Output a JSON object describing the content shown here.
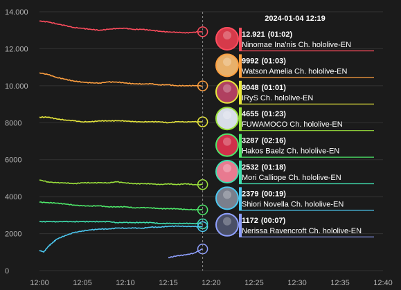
{
  "chart_data": {
    "type": "line",
    "x_axis": {
      "ticks": [
        "12:00",
        "12:05",
        "12:10",
        "12:15",
        "12:20",
        "12:25",
        "12:30",
        "12:35",
        "12:40"
      ],
      "min_minutes": 0,
      "max_minutes": 40
    },
    "y_axis": {
      "ticks": [
        "0",
        "2000",
        "4000",
        "6000",
        "8000",
        "10.000",
        "12.000",
        "14.000"
      ],
      "tick_values": [
        0,
        2000,
        4000,
        6000,
        8000,
        10000,
        12000,
        14000
      ],
      "min": 0,
      "max": 14000
    },
    "grid": "horizontal",
    "cursor_minutes": 19,
    "tooltip": {
      "time": "2024-01-04 12:19",
      "entries": [
        {
          "value": "12.921",
          "duration": "(01:02)",
          "name": "Ninomae Ina'nis Ch. hololive-EN",
          "color": "#ff4d5e",
          "avatar_color": "#d63a4a"
        },
        {
          "value": "9992",
          "duration": "(01:03)",
          "name": "Watson Amelia Ch. hololive-EN",
          "color": "#ffa040",
          "avatar_color": "#e8b06a"
        },
        {
          "value": "8048",
          "duration": "(01:01)",
          "name": "IRyS Ch. hololive-EN",
          "color": "#e6e63c",
          "avatar_color": "#b04060"
        },
        {
          "value": "4655",
          "duration": "(01:23)",
          "name": "FUWAMOCO Ch. hololive-EN",
          "color": "#9be23c",
          "avatar_color": "#d8dde8"
        },
        {
          "value": "3287",
          "duration": "(02:16)",
          "name": "Hakos Baelz Ch. hololive-EN",
          "color": "#4ee86a",
          "avatar_color": "#d0304a"
        },
        {
          "value": "2532",
          "duration": "(01:18)",
          "name": "Mori Calliope Ch. hololive-EN",
          "color": "#40e0b0",
          "avatar_color": "#e87a90"
        },
        {
          "value": "2379",
          "duration": "(00:19)",
          "name": "Shiori Novella Ch. hololive-EN",
          "color": "#4cc8f0",
          "avatar_color": "#7a7f8c"
        },
        {
          "value": "1172",
          "duration": "(00:07)",
          "name": "Nerissa Ravencroft Ch. hololive-EN",
          "color": "#8fa0ff",
          "avatar_color": "#4a4f66"
        }
      ]
    },
    "series": [
      {
        "color": "#ff4d5e",
        "x": [
          0,
          1,
          2,
          3,
          4,
          5,
          6,
          7,
          8,
          9,
          10,
          11,
          12,
          13,
          14,
          15,
          16,
          17,
          18,
          19
        ],
        "y": [
          13500,
          13450,
          13350,
          13250,
          13150,
          13100,
          13050,
          13000,
          13050,
          13100,
          13100,
          13050,
          13050,
          13000,
          12950,
          12900,
          12900,
          12850,
          12900,
          12921
        ]
      },
      {
        "color": "#ffa040",
        "x": [
          0,
          1,
          2,
          3,
          4,
          5,
          6,
          7,
          8,
          9,
          10,
          11,
          12,
          13,
          14,
          15,
          16,
          17,
          18,
          19
        ],
        "y": [
          10700,
          10600,
          10450,
          10350,
          10250,
          10200,
          10150,
          10150,
          10200,
          10200,
          10150,
          10100,
          10100,
          10100,
          10050,
          10050,
          10000,
          10000,
          10000,
          9992
        ]
      },
      {
        "color": "#e6e63c",
        "x": [
          0,
          1,
          2,
          3,
          4,
          5,
          6,
          7,
          8,
          9,
          10,
          11,
          12,
          13,
          14,
          15,
          16,
          17,
          18,
          19
        ],
        "y": [
          8300,
          8300,
          8200,
          8150,
          8100,
          8050,
          8050,
          8100,
          8100,
          8100,
          8100,
          8050,
          8050,
          8050,
          8050,
          8000,
          8050,
          8050,
          8050,
          8048
        ]
      },
      {
        "color": "#9be23c",
        "x": [
          0,
          1,
          2,
          3,
          4,
          5,
          6,
          7,
          8,
          9,
          10,
          11,
          12,
          13,
          14,
          15,
          16,
          17,
          18,
          19
        ],
        "y": [
          4900,
          4800,
          4750,
          4750,
          4700,
          4750,
          4750,
          4750,
          4750,
          4800,
          4750,
          4700,
          4700,
          4700,
          4650,
          4700,
          4650,
          4700,
          4650,
          4655
        ]
      },
      {
        "color": "#4ee86a",
        "x": [
          0,
          1,
          2,
          3,
          4,
          5,
          6,
          7,
          8,
          9,
          10,
          11,
          12,
          13,
          14,
          15,
          16,
          17,
          18,
          19
        ],
        "y": [
          3700,
          3680,
          3650,
          3600,
          3550,
          3500,
          3500,
          3500,
          3450,
          3450,
          3450,
          3400,
          3400,
          3400,
          3350,
          3350,
          3350,
          3300,
          3300,
          3287
        ]
      },
      {
        "color": "#40e0b0",
        "x": [
          0,
          1,
          2,
          3,
          4,
          5,
          6,
          7,
          8,
          9,
          10,
          11,
          12,
          13,
          14,
          15,
          16,
          17,
          18,
          19
        ],
        "y": [
          2650,
          2650,
          2650,
          2650,
          2650,
          2650,
          2650,
          2650,
          2650,
          2600,
          2600,
          2600,
          2600,
          2600,
          2550,
          2550,
          2550,
          2550,
          2550,
          2532
        ]
      },
      {
        "color": "#4cc8f0",
        "x": [
          0,
          0.5,
          1,
          1.5,
          2,
          3,
          4,
          5,
          6,
          7,
          8,
          9,
          10,
          11,
          12,
          13,
          14,
          15,
          16,
          17,
          18,
          19
        ],
        "y": [
          1100,
          1000,
          1300,
          1500,
          1700,
          1900,
          2050,
          2150,
          2200,
          2250,
          2250,
          2300,
          2300,
          2300,
          2300,
          2350,
          2350,
          2400,
          2400,
          2400,
          2380,
          2379
        ]
      },
      {
        "color": "#8fa0ff",
        "x": [
          15,
          16,
          17,
          18,
          19
        ],
        "y": [
          700,
          800,
          850,
          950,
          1172
        ]
      }
    ]
  }
}
